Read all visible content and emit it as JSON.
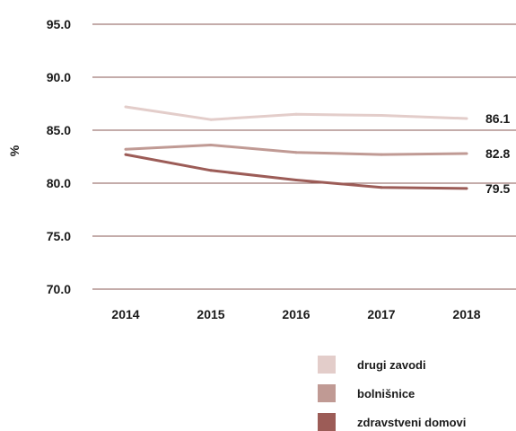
{
  "chart_data": {
    "type": "line",
    "title": "",
    "xlabel": "",
    "ylabel": "%",
    "categories": [
      "2014",
      "2015",
      "2016",
      "2017",
      "2018"
    ],
    "ylim": [
      70,
      95
    ],
    "yticks": [
      "70.0",
      "75.0",
      "80.0",
      "85.0",
      "90.0",
      "95.0"
    ],
    "grid": true,
    "legend_position": "bottom-right",
    "series": [
      {
        "name": "drugi zavodi",
        "color": "#e3cdca",
        "values": [
          87.2,
          86.0,
          86.5,
          86.4,
          86.1
        ],
        "end_label": "86.1"
      },
      {
        "name": "bolnišnice",
        "color": "#c09a94",
        "values": [
          83.2,
          83.6,
          82.9,
          82.7,
          82.8
        ],
        "end_label": "82.8"
      },
      {
        "name": "zdravstveni domovi",
        "color": "#9c5c57",
        "values": [
          82.7,
          81.2,
          80.3,
          79.6,
          79.5
        ],
        "end_label": "79.5"
      }
    ]
  }
}
